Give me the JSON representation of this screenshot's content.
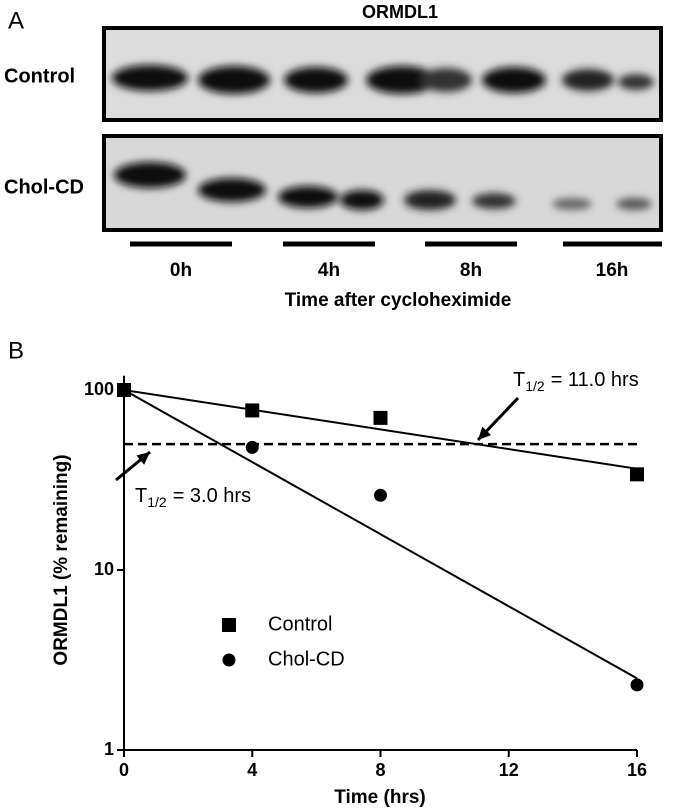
{
  "panel_a": {
    "label": "A",
    "title": "ORMDL1",
    "rows": [
      "Control",
      "Chol-CD"
    ],
    "lanes": [
      "0h",
      "4h",
      "8h",
      "16h"
    ],
    "xlabel": "Time after cycloheximide"
  },
  "chart_data": {
    "type": "scatter",
    "panel_label": "B",
    "xlabel": "Time (hrs)",
    "ylabel": "ORMDL1 (% remaining)",
    "x": [
      0,
      4,
      8,
      16
    ],
    "series": [
      {
        "name": "Control",
        "color": "#000000",
        "marker": "square",
        "values": [
          100,
          77,
          70,
          34
        ]
      },
      {
        "name": "Chol-CD",
        "color": "#000000",
        "marker": "circle",
        "values": [
          100,
          48,
          26,
          2.3
        ]
      }
    ],
    "fits": [
      {
        "x": [
          0,
          16
        ],
        "values": [
          100,
          36.5
        ]
      },
      {
        "x": [
          0,
          16
        ],
        "values": [
          100,
          2.5
        ]
      }
    ],
    "reference_line": 50,
    "annotations": [
      {
        "text": "T",
        "sub": "1/2",
        "tail": "= 11.0 hrs"
      },
      {
        "text": "T",
        "sub": "1/2",
        "tail": "= 3.0 hrs"
      }
    ],
    "xlim": [
      0,
      16
    ],
    "xticks": [
      0,
      4,
      8,
      12,
      16
    ],
    "ylim": [
      1,
      120
    ],
    "yticks": [
      1,
      10,
      100
    ],
    "log_y": true,
    "grid": false,
    "legend": "lower left"
  }
}
